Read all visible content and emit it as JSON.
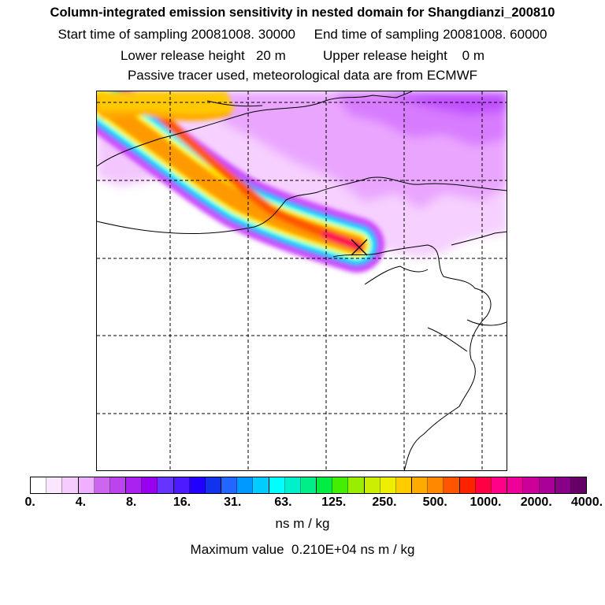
{
  "header": {
    "title": "Column-integrated emission sensitivity in nested domain for Shangdianzi_200810",
    "sampling": "Start time of sampling 20081008. 30000     End time of sampling 20081008. 60000",
    "release": "Lower release height   20 m          Upper release height    0 m",
    "source": "Passive tracer used, meteorological data are from ECMWF"
  },
  "map": {
    "receptor_icon": "x-cross-marker",
    "plume_colors": [
      "#ff00ff",
      "#ff0000",
      "#ff9900",
      "#ffff00",
      "#00ffff",
      "#00aaff",
      "#cc33ff"
    ],
    "background_sensitivity_color": "#e880ff"
  },
  "colorbar": {
    "colors": [
      "#ffffff",
      "#fbe6ff",
      "#f6ccff",
      "#efb0ff",
      "#cc66ee",
      "#bb44ee",
      "#aa22f0",
      "#9900f0",
      "#6633ff",
      "#4d1aff",
      "#2200ff",
      "#1133ee",
      "#2266ff",
      "#0099ff",
      "#00ccff",
      "#00ffff",
      "#00f0cc",
      "#00ee88",
      "#00ee44",
      "#44ee00",
      "#99ee00",
      "#ccee00",
      "#eeee00",
      "#ffcc00",
      "#ffaa00",
      "#ff8800",
      "#ff5500",
      "#ff2200",
      "#ff0044",
      "#ff0088",
      "#ee0099",
      "#cc0099",
      "#aa0099",
      "#880088",
      "#660066"
    ],
    "tick_labels": [
      "0.",
      "4.",
      "8.",
      "16.",
      "31.",
      "63.",
      "125.",
      "250.",
      "500.",
      "1000.",
      "2000.",
      "4000."
    ],
    "units": "ns m / kg",
    "max_value": "Maximum value  0.210E+04 ns m / kg"
  }
}
